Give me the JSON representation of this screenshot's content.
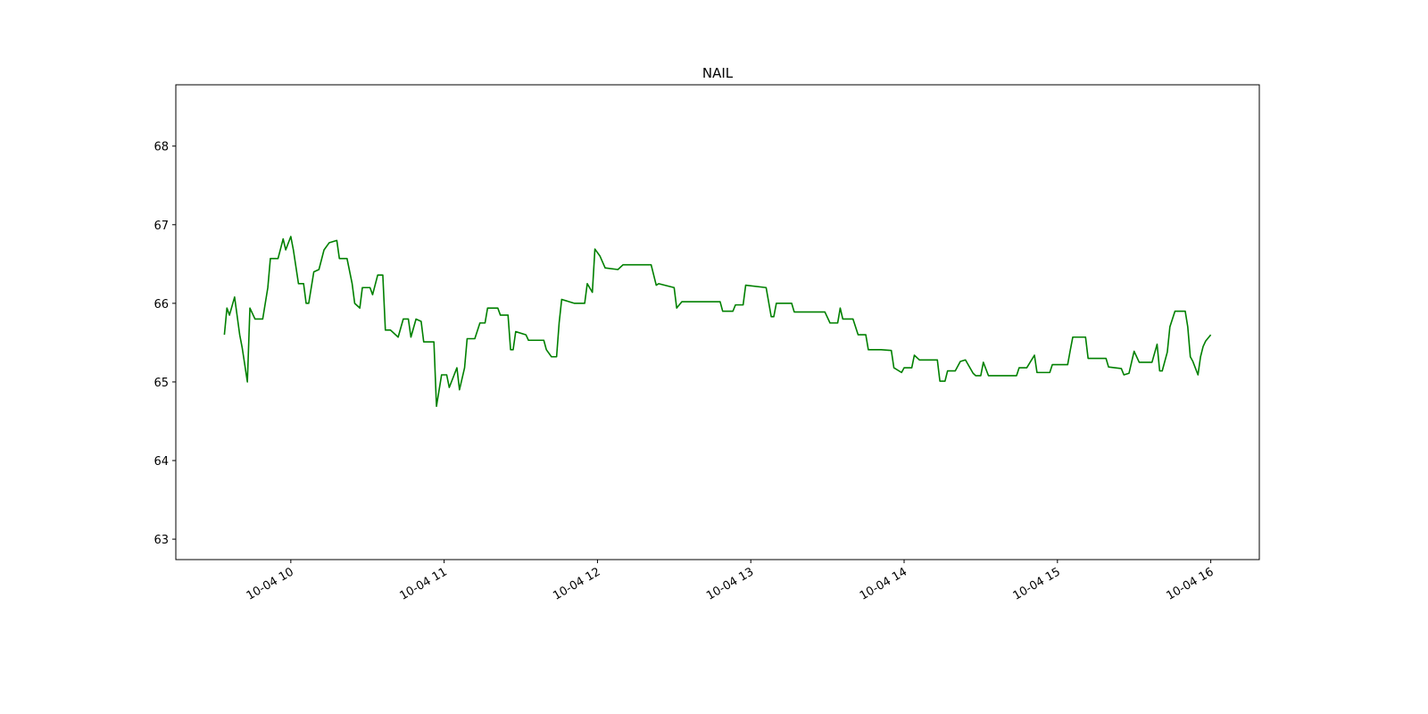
{
  "chart_data": {
    "type": "line",
    "title": "NAIL",
    "color": "#008000",
    "grid": false,
    "xlim": [
      "10-04 09:15",
      "10-04 16:19"
    ],
    "xticks": [
      {
        "value": "10-04 10:00",
        "label": "10-04 10"
      },
      {
        "value": "10-04 11:00",
        "label": "10-04 11"
      },
      {
        "value": "10-04 12:00",
        "label": "10-04 12"
      },
      {
        "value": "10-04 13:00",
        "label": "10-04 13"
      },
      {
        "value": "10-04 14:00",
        "label": "10-04 14"
      },
      {
        "value": "10-04 15:00",
        "label": "10-04 15"
      },
      {
        "value": "10-04 16:00",
        "label": "10-04 16"
      }
    ],
    "ylim": [
      62.74,
      68.78
    ],
    "yticks": [
      63,
      64,
      65,
      66,
      67,
      68
    ],
    "x": [
      "10-04 09:34",
      "10-04 09:35",
      "10-04 09:36",
      "10-04 09:38",
      "10-04 09:40",
      "10-04 09:41",
      "10-04 09:43",
      "10-04 09:44",
      "10-04 09:46",
      "10-04 09:49",
      "10-04 09:51",
      "10-04 09:52",
      "10-04 09:55",
      "10-04 09:57",
      "10-04 09:58",
      "10-04 10:00",
      "10-04 10:01",
      "10-04 10:03",
      "10-04 10:05",
      "10-04 10:06",
      "10-04 10:07",
      "10-04 10:09",
      "10-04 10:11",
      "10-04 10:13",
      "10-04 10:15",
      "10-04 10:18",
      "10-04 10:19",
      "10-04 10:22",
      "10-04 10:24",
      "10-04 10:25",
      "10-04 10:27",
      "10-04 10:28",
      "10-04 10:31",
      "10-04 10:32",
      "10-04 10:34",
      "10-04 10:36",
      "10-04 10:37",
      "10-04 10:39",
      "10-04 10:42",
      "10-04 10:44",
      "10-04 10:46",
      "10-04 10:47",
      "10-04 10:49",
      "10-04 10:51",
      "10-04 10:52",
      "10-04 10:56",
      "10-04 10:57",
      "10-04 10:59",
      "10-04 11:01",
      "10-04 11:02",
      "10-04 11:05",
      "10-04 11:06",
      "10-04 11:08",
      "10-04 11:09",
      "10-04 11:12",
      "10-04 11:14",
      "10-04 11:16",
      "10-04 11:17",
      "10-04 11:21",
      "10-04 11:22",
      "10-04 11:25",
      "10-04 11:26",
      "10-04 11:27",
      "10-04 11:28",
      "10-04 11:32",
      "10-04 11:33",
      "10-04 11:39",
      "10-04 11:40",
      "10-04 11:42",
      "10-04 11:44",
      "10-04 11:45",
      "10-04 11:46",
      "10-04 11:49",
      "10-04 11:51",
      "10-04 11:55",
      "10-04 11:56",
      "10-04 11:58",
      "10-04 11:59",
      "10-04 12:01",
      "10-04 12:03",
      "10-04 12:08",
      "10-04 12:10",
      "10-04 12:21",
      "10-04 12:23",
      "10-04 12:24",
      "10-04 12:30",
      "10-04 12:31",
      "10-04 12:33",
      "10-04 12:48",
      "10-04 12:49",
      "10-04 12:53",
      "10-04 12:54",
      "10-04 12:57",
      "10-04 12:58",
      "10-04 13:06",
      "10-04 13:08",
      "10-04 13:09",
      "10-04 13:10",
      "10-04 13:16",
      "10-04 13:17",
      "10-04 13:29",
      "10-04 13:31",
      "10-04 13:34",
      "10-04 13:35",
      "10-04 13:36",
      "10-04 13:40",
      "10-04 13:42",
      "10-04 13:45",
      "10-04 13:46",
      "10-04 13:51",
      "10-04 13:55",
      "10-04 13:56",
      "10-04 13:59",
      "10-04 14:00",
      "10-04 14:03",
      "10-04 14:04",
      "10-04 14:06",
      "10-04 14:13",
      "10-04 14:14",
      "10-04 14:16",
      "10-04 14:17",
      "10-04 14:20",
      "10-04 14:22",
      "10-04 14:24",
      "10-04 14:27",
      "10-04 14:28",
      "10-04 14:30",
      "10-04 14:31",
      "10-04 14:33",
      "10-04 14:44",
      "10-04 14:45",
      "10-04 14:48",
      "10-04 14:51",
      "10-04 14:52",
      "10-04 14:57",
      "10-04 14:58",
      "10-04 15:04",
      "10-04 15:05",
      "10-04 15:06",
      "10-04 15:11",
      "10-04 15:12",
      "10-04 15:19",
      "10-04 15:20",
      "10-04 15:25",
      "10-04 15:26",
      "10-04 15:28",
      "10-04 15:30",
      "10-04 15:32",
      "10-04 15:37",
      "10-04 15:39",
      "10-04 15:40",
      "10-04 15:41",
      "10-04 15:43",
      "10-04 15:44",
      "10-04 15:46",
      "10-04 15:50",
      "10-04 15:51",
      "10-04 15:52",
      "10-04 15:53",
      "10-04 15:55",
      "10-04 15:56",
      "10-04 15:57",
      "10-04 15:58",
      "10-04 16:00"
    ],
    "values": [
      65.6,
      65.94,
      65.85,
      66.08,
      65.6,
      65.43,
      65.0,
      65.94,
      65.8,
      65.8,
      66.2,
      66.57,
      66.57,
      66.82,
      66.68,
      66.85,
      66.68,
      66.25,
      66.25,
      66.0,
      66.0,
      66.4,
      66.43,
      66.68,
      66.77,
      66.8,
      66.57,
      66.57,
      66.25,
      66.0,
      65.94,
      66.2,
      66.2,
      66.11,
      66.36,
      66.36,
      65.66,
      65.66,
      65.57,
      65.8,
      65.8,
      65.57,
      65.8,
      65.77,
      65.51,
      65.51,
      64.69,
      65.09,
      65.09,
      64.93,
      65.18,
      64.9,
      65.18,
      65.55,
      65.55,
      65.75,
      65.75,
      65.94,
      65.94,
      65.85,
      65.85,
      65.41,
      65.41,
      65.64,
      65.6,
      65.53,
      65.53,
      65.41,
      65.32,
      65.32,
      65.75,
      66.05,
      66.02,
      66.0,
      66.0,
      66.25,
      66.14,
      66.69,
      66.6,
      66.45,
      66.43,
      66.49,
      66.49,
      66.23,
      66.25,
      66.2,
      65.94,
      66.02,
      66.02,
      65.9,
      65.9,
      65.98,
      65.98,
      66.23,
      66.2,
      65.83,
      65.83,
      66.0,
      66.0,
      65.89,
      65.89,
      65.75,
      65.75,
      65.94,
      65.8,
      65.8,
      65.6,
      65.6,
      65.41,
      65.41,
      65.4,
      65.18,
      65.12,
      65.18,
      65.18,
      65.34,
      65.28,
      65.28,
      65.01,
      65.01,
      65.14,
      65.14,
      65.26,
      65.28,
      65.11,
      65.08,
      65.08,
      65.25,
      65.08,
      65.08,
      65.18,
      65.18,
      65.34,
      65.12,
      65.12,
      65.22,
      65.22,
      65.4,
      65.57,
      65.57,
      65.3,
      65.3,
      65.19,
      65.17,
      65.09,
      65.11,
      65.39,
      65.25,
      65.25,
      65.48,
      65.14,
      65.14,
      65.38,
      65.7,
      65.9,
      65.9,
      65.7,
      65.32,
      65.26,
      65.09,
      65.32,
      65.45,
      65.52,
      65.6
    ]
  }
}
